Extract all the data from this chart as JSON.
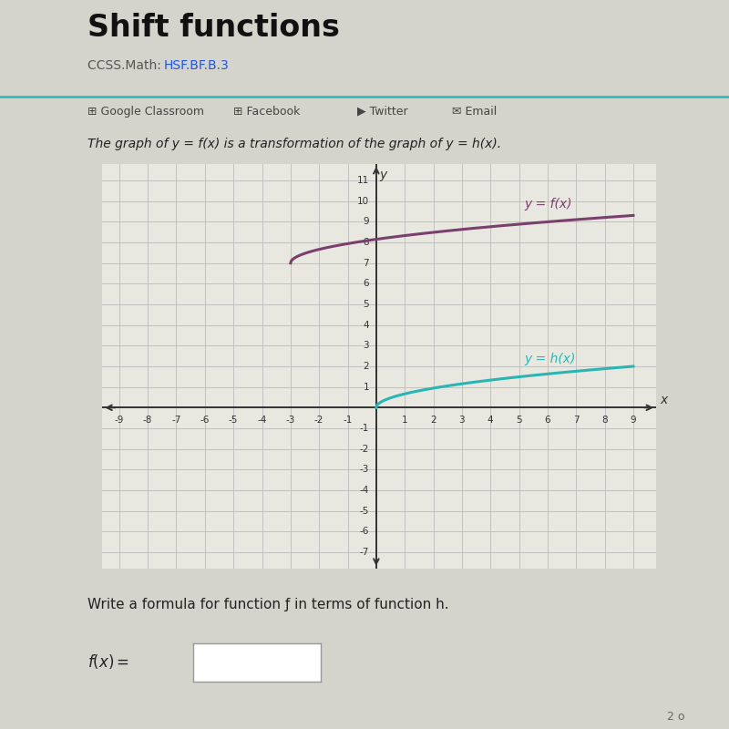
{
  "title": "Shift functions",
  "subtitle_plain": "CCSS.Math: ",
  "subtitle_link": "HSF.BF.B.3",
  "social_items": [
    "Google Classroom",
    "Facebook",
    "Twitter",
    "Email"
  ],
  "description": "The graph of y = f(x) is a transformation of the graph of y = h(x).",
  "write_formula_text": "Write a formula for function ƒ in terms of function h.",
  "fx_label": "y = f(x)",
  "hx_label": "y = h(x)",
  "fx_color": "#7b3f6e",
  "hx_color": "#2ab5b5",
  "axis_color": "#333333",
  "grid_color": "#bbbbbb",
  "graph_bg": "#e8e8e0",
  "page_bg": "#d4d4cc",
  "separator_color": "#2ab5b5",
  "xlim": [
    -9.6,
    9.8
  ],
  "ylim": [
    -7.8,
    11.8
  ],
  "xticks": [
    -9,
    -8,
    -7,
    -6,
    -5,
    -4,
    -3,
    -2,
    -1,
    1,
    2,
    3,
    4,
    5,
    6,
    7,
    8,
    9
  ],
  "yticks": [
    -7,
    -6,
    -5,
    -4,
    -3,
    -2,
    -1,
    1,
    2,
    3,
    4,
    5,
    6,
    7,
    8,
    9,
    10,
    11
  ],
  "font_title_size": 24,
  "font_subtitle_size": 10,
  "font_social_size": 9,
  "font_desc_size": 10,
  "font_tick_size": 7.5,
  "font_label_size": 10,
  "font_formula_size": 11,
  "page_number": "2 o"
}
